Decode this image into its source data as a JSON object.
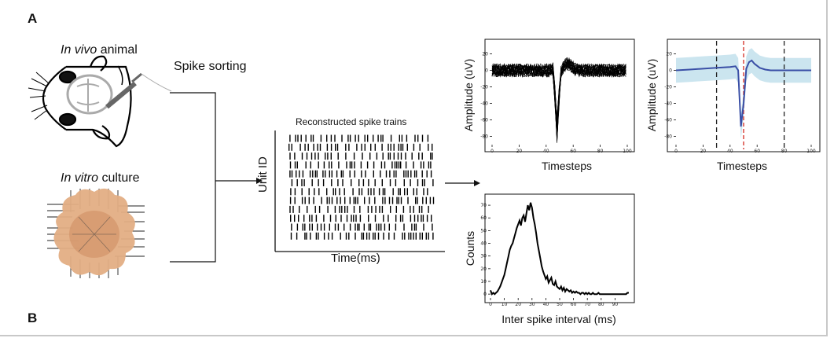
{
  "panels": {
    "a": "A",
    "b": "B"
  },
  "sources": {
    "in_vivo_italic": "In vivo",
    "in_vivo_rest": " animal",
    "in_vitro_italic": "In vitro",
    "in_vitro_rest": " culture"
  },
  "spike_sorting_label": "Spike sorting",
  "raster": {
    "title": "Reconstructed spike trains",
    "ylabel": "Unit ID",
    "xlabel": "Time(ms)"
  },
  "chart_data": [
    {
      "type": "line",
      "title": "",
      "xlabel": "Timesteps",
      "ylabel": "Amplitude (uV)",
      "xlim": [
        0,
        100
      ],
      "ylim": [
        -90,
        30
      ],
      "x_ticks": [
        0,
        20,
        40,
        60,
        80,
        100
      ],
      "y_ticks": [
        20,
        0,
        -20,
        -40,
        -60,
        -80
      ],
      "description_series": "overlaid spike waveforms, trough near timestep 48",
      "color": "#000000"
    },
    {
      "type": "line",
      "title": "",
      "xlabel": "Timesteps",
      "ylabel": "Amplitude (uV)",
      "xlim": [
        0,
        100
      ],
      "ylim": [
        -90,
        30
      ],
      "x_ticks": [
        0,
        20,
        40,
        60,
        80,
        100
      ],
      "y_ticks": [
        20,
        0,
        -20,
        -40,
        -60,
        -80
      ],
      "series": [
        {
          "x": [
            0,
            10,
            20,
            30,
            40,
            44,
            46,
            48,
            50,
            52,
            54,
            56,
            58,
            62,
            66,
            70,
            80,
            90,
            100
          ],
          "y": [
            0,
            1,
            2,
            3,
            4,
            5,
            0,
            -68,
            -40,
            2,
            10,
            12,
            8,
            3,
            1,
            0,
            0,
            0,
            0
          ]
        }
      ],
      "band_halfwidth": 15,
      "vlines_dashed": [
        30,
        80
      ],
      "vline_red": 50,
      "colors": {
        "mean": "#3a4fa6",
        "band": "#b9dcea",
        "dashed": "#222222",
        "red": "#d9473f"
      }
    },
    {
      "type": "line",
      "title": "",
      "xlabel": "Inter spike interval (ms)",
      "ylabel": "Counts",
      "xlim": [
        0,
        100
      ],
      "ylim": [
        -3,
        75
      ],
      "x_ticks": [
        0,
        10,
        20,
        30,
        40,
        50,
        60,
        70,
        80,
        90
      ],
      "y_ticks": [
        70,
        60,
        50,
        40,
        30,
        20,
        10,
        0
      ],
      "x": [
        0,
        1,
        2,
        3,
        4,
        5,
        6,
        7,
        8,
        9,
        10,
        11,
        12,
        13,
        14,
        15,
        16,
        17,
        18,
        19,
        20,
        21,
        22,
        23,
        24,
        25,
        26,
        27,
        28,
        29,
        30,
        31,
        32,
        33,
        34,
        35,
        36,
        37,
        38,
        39,
        40,
        41,
        42,
        43,
        44,
        45,
        46,
        47,
        48,
        49,
        50,
        51,
        52,
        53,
        54,
        55,
        56,
        57,
        58,
        59,
        60,
        61,
        62,
        63,
        64,
        65,
        66,
        67,
        68,
        69,
        70,
        71,
        72,
        73,
        74,
        75,
        76,
        77,
        78,
        79,
        80,
        81,
        82,
        83,
        84,
        85,
        86,
        87,
        88,
        89,
        90,
        91,
        92,
        93,
        94,
        95,
        96,
        97,
        98,
        99,
        100
      ],
      "y": [
        3,
        0,
        1,
        0,
        1,
        2,
        4,
        6,
        9,
        12,
        15,
        20,
        25,
        30,
        35,
        38,
        40,
        44,
        48,
        52,
        55,
        58,
        54,
        60,
        62,
        57,
        64,
        70,
        66,
        72,
        68,
        60,
        55,
        48,
        40,
        34,
        28,
        22,
        18,
        15,
        12,
        14,
        9,
        11,
        13,
        8,
        7,
        10,
        6,
        5,
        4,
        6,
        3,
        5,
        2,
        4,
        3,
        2,
        3,
        1,
        2,
        1,
        2,
        1,
        1,
        0,
        1,
        1,
        0,
        1,
        0,
        1,
        0,
        0,
        1,
        0,
        0,
        0,
        1,
        0,
        0,
        0,
        0,
        0,
        0,
        0,
        0,
        0,
        0,
        0,
        0,
        0,
        0,
        0,
        0,
        0,
        0,
        0,
        0,
        1,
        1
      ],
      "color": "#000000"
    }
  ]
}
